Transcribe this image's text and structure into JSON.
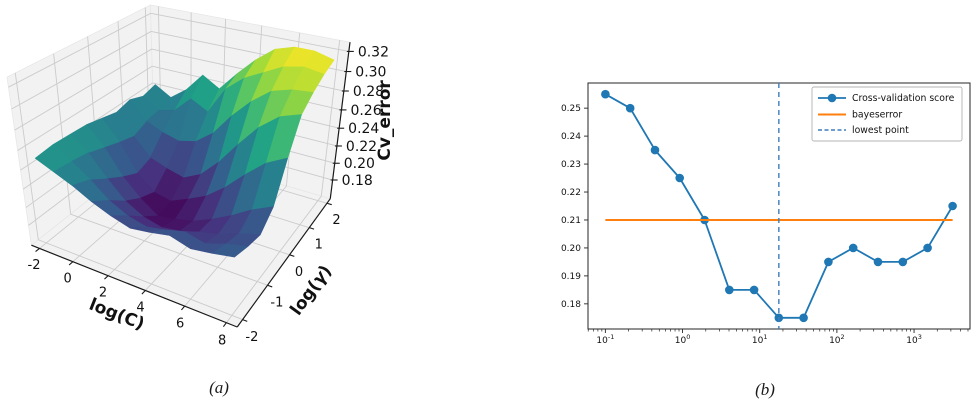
{
  "figure": {
    "caption_a": "(a)",
    "caption_b": "(b)",
    "background": "#ffffff"
  },
  "colors": {
    "series_blue": "#1f77b4",
    "bayes_orange": "#ff7f0e",
    "lowest_dash_blue": "#3d7dbd",
    "pane_gray": "#f2f2f2",
    "grid3d_gray": "#cbcbcb",
    "axis_dark": "#1a1a1a",
    "spine_dark": "#262626",
    "text_dark": "#111111",
    "legend_border": "#b3b3b3",
    "viridis_stops": [
      [
        0,
        "#440154"
      ],
      [
        0.14,
        "#46327e"
      ],
      [
        0.29,
        "#365c8d"
      ],
      [
        0.43,
        "#277f8e"
      ],
      [
        0.57,
        "#1fa187"
      ],
      [
        0.71,
        "#4ac16d"
      ],
      [
        0.86,
        "#a0da39"
      ],
      [
        1,
        "#fde725"
      ]
    ]
  },
  "chart_data": [
    {
      "id": "cv-error-surface",
      "type": "surface",
      "xlabel": "log(C)",
      "ylabel": "log(γ)",
      "zlabel": "Cv_error",
      "x": [
        -2,
        -1,
        0,
        1,
        2,
        3,
        4,
        5,
        6,
        7,
        8
      ],
      "y": [
        -2,
        -1.5,
        -1,
        -0.5,
        0,
        0.5,
        1,
        1.5,
        2
      ],
      "z": [
        [
          0.25,
          0.242,
          0.234,
          0.224,
          0.216,
          0.21,
          0.213,
          0.217,
          0.211,
          0.214,
          0.218
        ],
        [
          0.252,
          0.24,
          0.227,
          0.211,
          0.201,
          0.196,
          0.2,
          0.205,
          0.2,
          0.207,
          0.212
        ],
        [
          0.251,
          0.237,
          0.215,
          0.196,
          0.185,
          0.18,
          0.183,
          0.189,
          0.194,
          0.202,
          0.208
        ],
        [
          0.25,
          0.231,
          0.204,
          0.185,
          0.171,
          0.174,
          0.179,
          0.188,
          0.199,
          0.212,
          0.222
        ],
        [
          0.246,
          0.225,
          0.195,
          0.178,
          0.174,
          0.183,
          0.193,
          0.209,
          0.229,
          0.247,
          0.258
        ],
        [
          0.242,
          0.22,
          0.2,
          0.193,
          0.188,
          0.198,
          0.218,
          0.243,
          0.266,
          0.282,
          0.289
        ],
        [
          0.246,
          0.226,
          0.218,
          0.213,
          0.218,
          0.233,
          0.257,
          0.277,
          0.292,
          0.298,
          0.3
        ],
        [
          0.24,
          0.228,
          0.233,
          0.251,
          0.241,
          0.271,
          0.287,
          0.297,
          0.307,
          0.311,
          0.308
        ],
        [
          0.244,
          0.233,
          0.247,
          0.268,
          0.257,
          0.278,
          0.297,
          0.312,
          0.318,
          0.318,
          0.313
        ]
      ],
      "x_ticks": [
        -2,
        0,
        2,
        4,
        6,
        8
      ],
      "y_ticks": [
        -2,
        -1,
        0,
        1,
        2
      ],
      "z_ticks": [
        0.18,
        0.2,
        0.22,
        0.24,
        0.26,
        0.28,
        0.3,
        0.32
      ],
      "xlim": [
        -2.5,
        8.5
      ],
      "ylim": [
        -2.2,
        2.2
      ],
      "zlim": [
        0.157,
        0.329
      ],
      "colormap": "viridis",
      "view": {
        "elev": 30,
        "azim": -60
      }
    },
    {
      "id": "cv-score-curve",
      "type": "line",
      "x_scale": "log",
      "series": [
        {
          "name": "Cross-validation score",
          "style": "solid-marker",
          "color": "#1f77b4",
          "x": [
            0.1,
            0.21,
            0.44,
            0.92,
            1.93,
            4.04,
            8.45,
            17.7,
            37.1,
            77.7,
            162.8,
            341.5,
            715.5,
            1499,
            3162
          ],
          "y": [
            0.255,
            0.25,
            0.235,
            0.225,
            0.21,
            0.185,
            0.185,
            0.175,
            0.175,
            0.195,
            0.2,
            0.195,
            0.195,
            0.2,
            0.215
          ]
        },
        {
          "name": "bayeserror",
          "style": "solid",
          "color": "#ff7f0e",
          "y_const": 0.21,
          "x_span": [
            0.1,
            3162
          ]
        },
        {
          "name": "lowest point",
          "style": "dashed",
          "color": "#3d7dbd",
          "x_const": 17.7
        }
      ],
      "x_tick_exponents": [
        -1,
        0,
        1,
        2,
        3
      ],
      "y_ticks": [
        0.18,
        0.19,
        0.2,
        0.21,
        0.22,
        0.23,
        0.24,
        0.25
      ],
      "xlim_log10": [
        -1.225,
        3.725
      ],
      "ylim": [
        0.171,
        0.259
      ],
      "legend": {
        "position": "upper-right",
        "entries": [
          "Cross-validation score",
          "bayeserror",
          "lowest point"
        ]
      }
    }
  ]
}
